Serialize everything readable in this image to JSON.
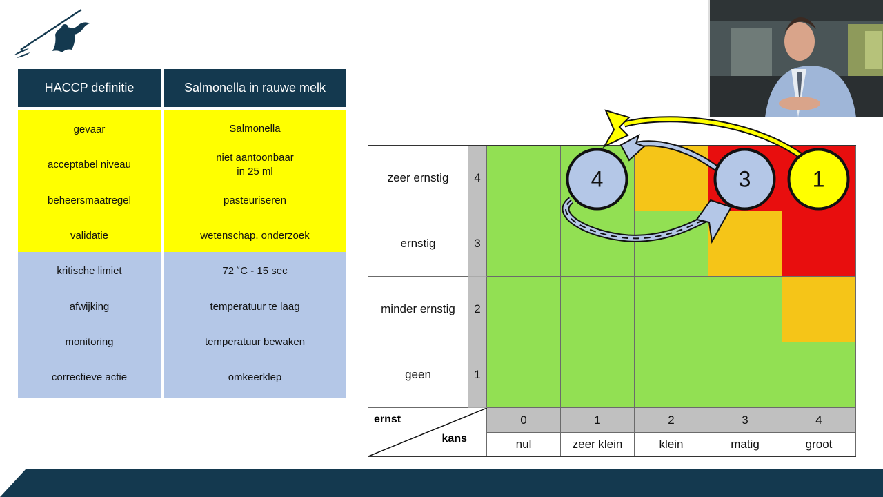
{
  "haccp_table": {
    "header_left": "HACCP definitie",
    "header_right": "Salmonella in rauwe melk",
    "rows": [
      {
        "term": "gevaar",
        "value": "Salmonella",
        "group": "yellow"
      },
      {
        "term": "acceptabel niveau",
        "value": "niet aantoonbaar\nin 25 ml",
        "group": "yellow"
      },
      {
        "term": "beheersmaatregel",
        "value": "pasteuriseren",
        "group": "yellow"
      },
      {
        "term": "validatie",
        "value": "wetenschap. onderzoek",
        "group": "yellow"
      },
      {
        "term": "kritische limiet",
        "value": "72 ˚C -  15 sec",
        "group": "blue"
      },
      {
        "term": "afwijking",
        "value": "temperatuur te laag",
        "group": "blue"
      },
      {
        "term": "monitoring",
        "value": "temperatuur bewaken",
        "group": "blue"
      },
      {
        "term": "correctieve actie",
        "value": "omkeerklep",
        "group": "blue"
      }
    ],
    "colors": {
      "header": "#14394f",
      "yellow": "#ffff00",
      "blue": "#b4c7e7"
    }
  },
  "risk_matrix": {
    "severity_rows": [
      {
        "label": "zeer ernstig",
        "score": "4",
        "cells": [
          "green",
          "green",
          "amber",
          "red",
          "red"
        ]
      },
      {
        "label": "ernstig",
        "score": "3",
        "cells": [
          "green",
          "green",
          "green",
          "amber",
          "red"
        ]
      },
      {
        "label": "minder ernstig",
        "score": "2",
        "cells": [
          "green",
          "green",
          "green",
          "green",
          "amber"
        ]
      },
      {
        "label": "geen",
        "score": "1",
        "cells": [
          "green",
          "green",
          "green",
          "green",
          "green"
        ]
      }
    ],
    "corner_top": "ernst",
    "corner_bottom": "kans",
    "probability_scores": [
      "0",
      "1",
      "2",
      "3",
      "4"
    ],
    "probability_labels": [
      "nul",
      "zeer klein",
      "klein",
      "matig",
      "groot"
    ],
    "colors": {
      "green": "#92e053",
      "amber": "#f5c518",
      "red": "#e80e0e",
      "score_bg": "#c0c0c0"
    },
    "markers": [
      {
        "label": "1",
        "fill": "#ffff00",
        "severity": 4,
        "probability": 4
      },
      {
        "label": "3",
        "fill": "#b4c7e7",
        "severity": 4,
        "probability": 3
      },
      {
        "label": "4",
        "fill": "#b4c7e7",
        "severity": 4,
        "probability": 1
      }
    ]
  },
  "footer_color": "#14394f"
}
